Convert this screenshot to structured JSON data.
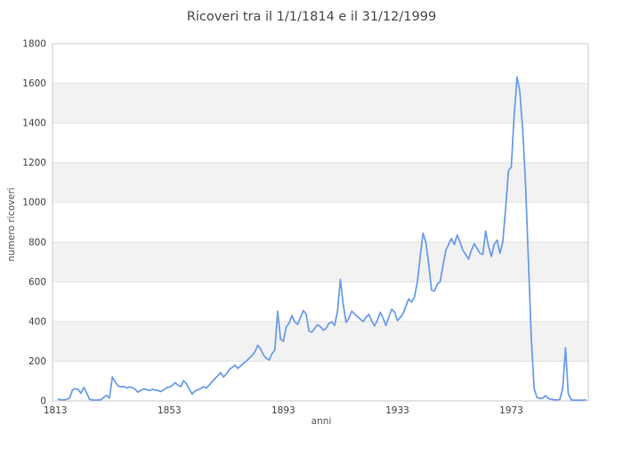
{
  "chart_data": {
    "type": "line",
    "title": "Ricoveri tra il 1/1/1814 e il 31/12/1999",
    "xlabel": "anni",
    "ylabel": "numero ricoveri",
    "x_start": 1814,
    "x_end": 1999,
    "values": [
      8,
      6,
      5,
      8,
      14,
      55,
      62,
      58,
      38,
      68,
      40,
      8,
      5,
      4,
      5,
      6,
      18,
      28,
      14,
      120,
      96,
      76,
      70,
      73,
      65,
      70,
      67,
      58,
      44,
      54,
      60,
      57,
      52,
      58,
      55,
      52,
      47,
      55,
      66,
      70,
      76,
      92,
      80,
      72,
      102,
      86,
      58,
      34,
      50,
      56,
      62,
      72,
      64,
      80,
      96,
      112,
      126,
      142,
      120,
      136,
      156,
      168,
      180,
      164,
      176,
      190,
      200,
      214,
      228,
      248,
      280,
      262,
      232,
      214,
      206,
      238,
      256,
      452,
      312,
      300,
      372,
      392,
      430,
      398,
      386,
      420,
      455,
      438,
      352,
      346,
      366,
      384,
      374,
      356,
      366,
      390,
      398,
      380,
      452,
      612,
      488,
      396,
      416,
      452,
      438,
      424,
      412,
      400,
      420,
      436,
      404,
      378,
      406,
      446,
      418,
      380,
      422,
      462,
      448,
      404,
      420,
      440,
      478,
      514,
      498,
      524,
      598,
      724,
      845,
      798,
      688,
      558,
      554,
      588,
      600,
      680,
      758,
      788,
      818,
      788,
      836,
      800,
      758,
      738,
      714,
      760,
      792,
      768,
      744,
      738,
      856,
      778,
      728,
      788,
      810,
      744,
      800,
      968,
      1160,
      1178,
      1438,
      1632,
      1560,
      1360,
      1080,
      700,
      310,
      60,
      18,
      12,
      14,
      26,
      12,
      8,
      6,
      5,
      7,
      60,
      268,
      35,
      6,
      4,
      3,
      4,
      3,
      5
    ],
    "xticks": [
      1813,
      1853,
      1893,
      1933,
      1973
    ],
    "yticks": [
      0,
      200,
      400,
      600,
      800,
      1000,
      1200,
      1400,
      1600,
      1800
    ],
    "layout": {
      "xlim": [
        1812,
        2000
      ],
      "ylim": [
        0,
        1800
      ],
      "grid": "horizontal",
      "legend": "none",
      "band_ranges": [
        [
          200,
          400
        ],
        [
          600,
          800
        ],
        [
          1000,
          1200
        ],
        [
          1400,
          1600
        ]
      ]
    },
    "colors": {
      "line": "#6d9eeb",
      "band": "#f2f2f2",
      "grid": "#e2e2e2",
      "border": "#c9c9c9",
      "title_text": "#4a4a4a",
      "tick_text": "#444444",
      "axis_label_text": "#555555",
      "background": "#ffffff"
    }
  }
}
